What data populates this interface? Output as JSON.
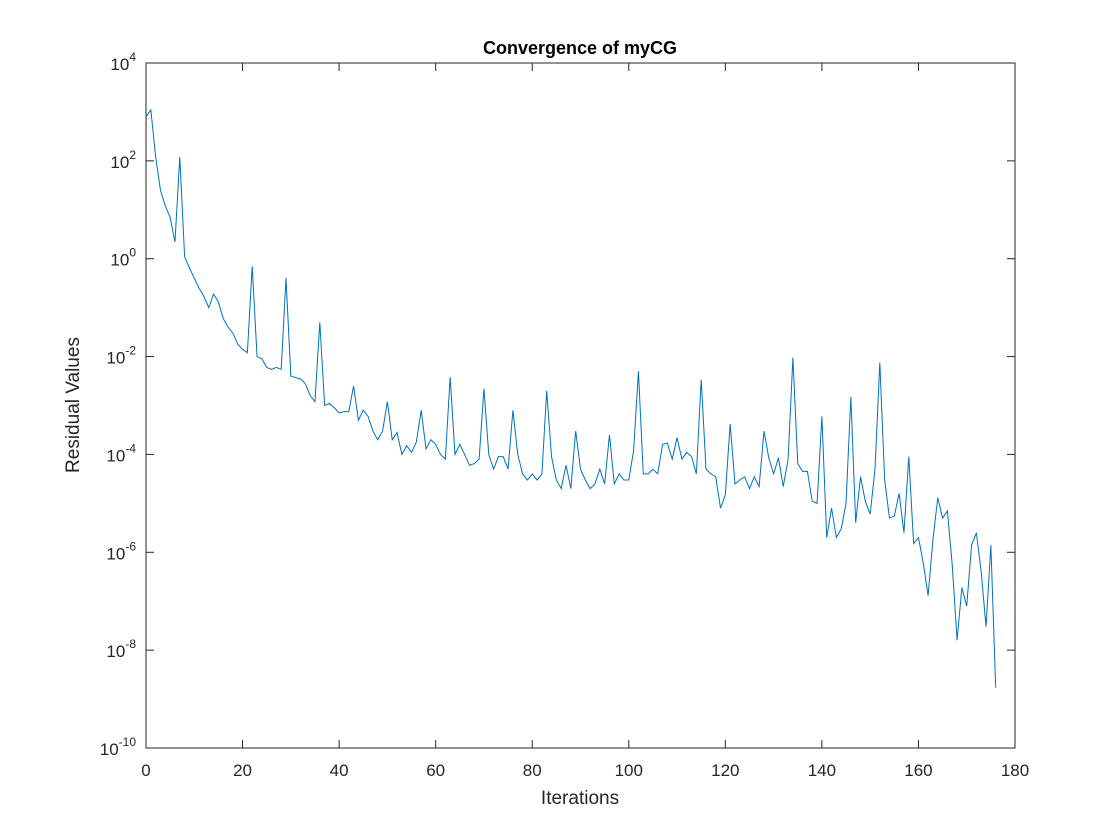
{
  "chart_data": {
    "type": "line",
    "title": "Convergence of myCG",
    "xlabel": "Iterations",
    "ylabel": "Residual Values",
    "xlim": [
      0,
      180
    ],
    "ylim": [
      1e-10,
      10000.0
    ],
    "yscale": "log",
    "grid": false,
    "x_ticks": [
      0,
      20,
      40,
      60,
      80,
      100,
      120,
      140,
      160,
      180
    ],
    "y_ticks": [
      {
        "base": "10",
        "exponent": "-10",
        "value": 1e-10
      },
      {
        "base": "10",
        "exponent": "-8",
        "value": 1e-08
      },
      {
        "base": "10",
        "exponent": "-6",
        "value": 1e-06
      },
      {
        "base": "10",
        "exponent": "-4",
        "value": 0.0001
      },
      {
        "base": "10",
        "exponent": "-2",
        "value": 0.01
      },
      {
        "base": "10",
        "exponent": "0",
        "value": 1
      },
      {
        "base": "10",
        "exponent": "2",
        "value": 100.0
      },
      {
        "base": "10",
        "exponent": "4",
        "value": 10000.0
      }
    ],
    "line_color": "#0072BD",
    "x": [
      0,
      1,
      2,
      3,
      4,
      5,
      6,
      7,
      8,
      9,
      10,
      11,
      12,
      13,
      14,
      15,
      16,
      17,
      18,
      19,
      20,
      21,
      22,
      23,
      24,
      25,
      26,
      27,
      28,
      29,
      30,
      31,
      32,
      33,
      34,
      35,
      36,
      37,
      38,
      39,
      40,
      41,
      42,
      43,
      44,
      45,
      46,
      47,
      48,
      49,
      50,
      51,
      52,
      53,
      54,
      55,
      56,
      57,
      58,
      59,
      60,
      61,
      62,
      63,
      64,
      65,
      66,
      67,
      68,
      69,
      70,
      71,
      72,
      73,
      74,
      75,
      76,
      77,
      78,
      79,
      80,
      81,
      82,
      83,
      84,
      85,
      86,
      87,
      88,
      89,
      90,
      91,
      92,
      93,
      94,
      95,
      96,
      97,
      98,
      99,
      100,
      101,
      102,
      103,
      104,
      105,
      106,
      107,
      108,
      109,
      110,
      111,
      112,
      113,
      114,
      115,
      116,
      117,
      118,
      119,
      120,
      121,
      122,
      123,
      124,
      125,
      126,
      127,
      128,
      129,
      130,
      131,
      132,
      133,
      134,
      135,
      136,
      137,
      138,
      139,
      140,
      141,
      142,
      143,
      144,
      145,
      146,
      147,
      148,
      149,
      150,
      151,
      152,
      153,
      154,
      155,
      156,
      157,
      158,
      159,
      160,
      161,
      162,
      163,
      164,
      165,
      166,
      167,
      168,
      169,
      170,
      171,
      172,
      173,
      174,
      175,
      176
    ],
    "y": [
      800,
      1100,
      120,
      25,
      12,
      7,
      2.2,
      120,
      1.1,
      0.65,
      0.4,
      0.25,
      0.17,
      0.1,
      0.19,
      0.13,
      0.06,
      0.04,
      0.03,
      0.018,
      0.014,
      0.012,
      0.7,
      0.01,
      0.009,
      0.006,
      0.0055,
      0.006,
      0.0055,
      0.4,
      0.004,
      0.0037,
      0.0035,
      0.0028,
      0.0016,
      0.0012,
      0.05,
      0.001,
      0.0011,
      0.0009,
      0.0007,
      0.00075,
      0.00075,
      0.0025,
      0.0005,
      0.0008,
      0.0006,
      0.0003,
      0.0002,
      0.0003,
      0.0012,
      0.0002,
      0.00028,
      0.0001,
      0.00015,
      0.00011,
      0.00018,
      0.0008,
      0.00013,
      0.0002,
      0.00016,
      0.0001,
      8e-05,
      0.0038,
      0.0001,
      0.00016,
      0.0001,
      6e-05,
      6.5e-05,
      8e-05,
      0.0022,
      0.0001,
      5e-05,
      9e-05,
      9e-05,
      5e-05,
      0.0008,
      0.0001,
      4e-05,
      3e-05,
      4e-05,
      3e-05,
      4e-05,
      0.002,
      9e-05,
      3e-05,
      2e-05,
      6e-05,
      2e-05,
      0.0003,
      5e-05,
      3e-05,
      2e-05,
      2.5e-05,
      5e-05,
      2.5e-05,
      0.00025,
      2.5e-05,
      4e-05,
      3e-05,
      3e-05,
      0.00012,
      0.005,
      4e-05,
      4e-05,
      5e-05,
      4e-05,
      0.00016,
      0.00017,
      8e-05,
      0.00022,
      8e-05,
      0.00011,
      9e-05,
      4e-05,
      0.0034,
      5e-05,
      4e-05,
      3.5e-05,
      8e-06,
      1.5e-05,
      0.00042,
      2.5e-05,
      3e-05,
      3.5e-05,
      2e-05,
      3.5e-05,
      2.2e-05,
      0.0003,
      8.5e-05,
      4e-05,
      8.5e-05,
      2.2e-05,
      8e-05,
      0.0095,
      6.5e-05,
      4.5e-05,
      4.5e-05,
      1.1e-05,
      1e-05,
      0.0006,
      2e-06,
      8e-06,
      2e-06,
      3e-06,
      1e-05,
      0.0015,
      4e-06,
      3.5e-05,
      1.1e-05,
      6e-06,
      5e-05,
      0.0075,
      3e-05,
      5e-06,
      5.5e-06,
      1.6e-05,
      2.5e-06,
      9e-05,
      1.5e-06,
      2e-06,
      6e-07,
      1.3e-07,
      1.8e-06,
      1.3e-05,
      5e-06,
      7e-06,
      5.5e-07,
      1.6e-08,
      1.9e-07,
      8e-08,
      1.4e-06,
      2.5e-06,
      4e-07,
      3e-08,
      1.4e-06,
      1.7e-09
    ]
  }
}
